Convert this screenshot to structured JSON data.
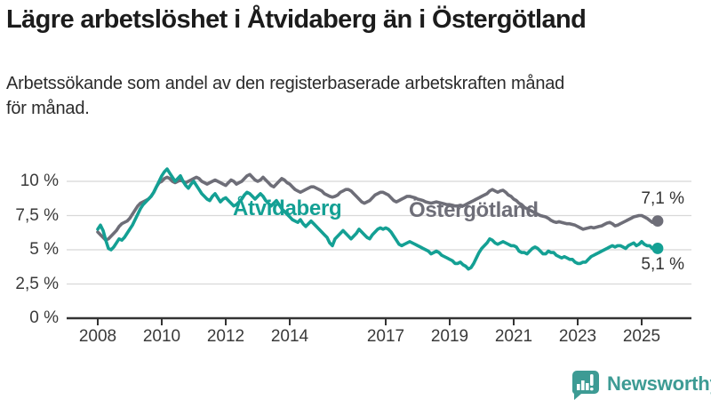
{
  "header": {
    "title": "Lägre arbetslöshet i Åtvidaberg än i Östergötland",
    "subtitle_line1": "Arbetssökande som andel av den registerbaserade arbetskraften månad",
    "subtitle_line2": "för månad."
  },
  "chart_data": {
    "type": "line",
    "title": "Lägre arbetslöshet i Åtvidaberg än i Östergötland",
    "xlabel": "",
    "ylabel": "Arbetssökande som andel av den registerbaserade arbetskraften",
    "x_unit": "month",
    "x_start_year": 2008,
    "x_end_label_year": 2025.5,
    "ylim": [
      0,
      11.2
    ],
    "grid": "horizontal",
    "y_ticks": [
      {
        "label": "10 %",
        "value": 10
      },
      {
        "label": "7,5 %",
        "value": 7.5
      },
      {
        "label": "5 %",
        "value": 5
      },
      {
        "label": "2,5 %",
        "value": 2.5
      },
      {
        "label": "0 %",
        "value": 0
      }
    ],
    "x_ticks": [
      {
        "label": "2008",
        "year": 2008
      },
      {
        "label": "2010",
        "year": 2010
      },
      {
        "label": "2012",
        "year": 2012
      },
      {
        "label": "2014",
        "year": 2014
      },
      {
        "label": "2017",
        "year": 2017
      },
      {
        "label": "2019",
        "year": 2019
      },
      {
        "label": "2021",
        "year": 2021
      },
      {
        "label": "2023",
        "year": 2023
      },
      {
        "label": "2025",
        "year": 2025
      }
    ],
    "series": [
      {
        "name": "Östergötland",
        "color": "#6e6e78",
        "end_label": "7,1 %",
        "end_value": 7.1,
        "values": [
          6.3,
          6.1,
          5.9,
          5.7,
          5.8,
          6.0,
          6.2,
          6.4,
          6.7,
          6.9,
          7.0,
          7.1,
          7.3,
          7.6,
          7.9,
          8.2,
          8.4,
          8.5,
          8.6,
          8.7,
          8.9,
          9.2,
          9.6,
          9.9,
          10.0,
          10.2,
          10.3,
          10.2,
          10.0,
          9.9,
          10.0,
          10.1,
          10.0,
          9.9,
          10.0,
          10.1,
          10.2,
          10.3,
          10.2,
          10.0,
          9.9,
          9.8,
          9.9,
          10.0,
          10.1,
          10.0,
          9.9,
          9.8,
          9.7,
          9.9,
          10.1,
          10.0,
          9.8,
          9.9,
          10.0,
          10.2,
          10.4,
          10.5,
          10.3,
          10.1,
          10.0,
          10.1,
          10.3,
          10.1,
          9.9,
          9.7,
          9.6,
          9.8,
          10.0,
          10.2,
          10.1,
          9.9,
          9.8,
          9.6,
          9.4,
          9.3,
          9.2,
          9.3,
          9.4,
          9.5,
          9.6,
          9.6,
          9.5,
          9.4,
          9.3,
          9.1,
          9.0,
          8.9,
          8.85,
          8.9,
          9.0,
          9.2,
          9.3,
          9.4,
          9.4,
          9.3,
          9.1,
          8.9,
          8.7,
          8.5,
          8.4,
          8.5,
          8.6,
          8.8,
          9.0,
          9.1,
          9.2,
          9.2,
          9.1,
          9.0,
          8.8,
          8.6,
          8.5,
          8.6,
          8.7,
          8.8,
          8.9,
          8.9,
          8.85,
          8.8,
          8.7,
          8.65,
          8.6,
          8.5,
          8.45,
          8.4,
          8.45,
          8.5,
          8.45,
          8.4,
          8.35,
          8.3,
          8.3,
          8.25,
          8.2,
          8.2,
          8.25,
          8.2,
          8.3,
          8.4,
          8.5,
          8.6,
          8.7,
          8.8,
          8.9,
          9.0,
          9.1,
          9.3,
          9.4,
          9.3,
          9.2,
          9.3,
          9.35,
          9.2,
          9.0,
          8.9,
          8.7,
          8.6,
          8.4,
          8.3,
          8.1,
          8.0,
          7.9,
          7.8,
          7.7,
          7.6,
          7.5,
          7.45,
          7.4,
          7.3,
          7.15,
          7.05,
          7.0,
          7.05,
          7.0,
          6.95,
          6.9,
          6.9,
          6.85,
          6.8,
          6.7,
          6.6,
          6.5,
          6.55,
          6.6,
          6.65,
          6.6,
          6.65,
          6.7,
          6.75,
          6.85,
          6.95,
          7.0,
          6.9,
          6.75,
          6.8,
          6.9,
          7.0,
          7.1,
          7.2,
          7.3,
          7.4,
          7.45,
          7.5,
          7.5,
          7.4,
          7.3,
          7.15,
          7.0,
          7.05,
          7.1
        ]
      },
      {
        "name": "Åtvidaberg",
        "color": "#14a094",
        "end_label": "5,1 %",
        "end_value": 5.1,
        "values": [
          6.5,
          6.8,
          6.4,
          5.7,
          5.1,
          5.0,
          5.2,
          5.5,
          5.8,
          5.7,
          5.9,
          6.2,
          6.5,
          6.8,
          7.2,
          7.6,
          8.0,
          8.3,
          8.5,
          8.7,
          8.9,
          9.2,
          9.6,
          10.0,
          10.4,
          10.7,
          10.9,
          10.6,
          10.3,
          10.0,
          10.2,
          10.4,
          10.0,
          9.7,
          9.5,
          9.8,
          10.0,
          9.7,
          9.4,
          9.1,
          8.9,
          8.7,
          8.6,
          8.9,
          9.1,
          8.8,
          8.5,
          8.7,
          8.8,
          8.6,
          8.4,
          8.2,
          8.3,
          8.5,
          8.7,
          9.0,
          9.2,
          9.1,
          8.9,
          8.7,
          8.9,
          9.1,
          8.9,
          8.6,
          8.4,
          8.2,
          8.4,
          8.6,
          8.3,
          8.0,
          7.8,
          7.6,
          7.4,
          7.2,
          7.1,
          7.0,
          7.2,
          6.9,
          6.7,
          6.9,
          7.1,
          6.9,
          6.7,
          6.5,
          6.3,
          6.1,
          5.9,
          5.5,
          5.3,
          5.8,
          6.0,
          6.2,
          6.4,
          6.2,
          6.0,
          5.8,
          6.0,
          6.2,
          6.5,
          6.3,
          6.1,
          5.9,
          5.8,
          6.1,
          6.3,
          6.5,
          6.6,
          6.5,
          6.6,
          6.5,
          6.3,
          6.0,
          5.7,
          5.4,
          5.3,
          5.4,
          5.5,
          5.6,
          5.5,
          5.4,
          5.3,
          5.2,
          5.1,
          5.0,
          4.9,
          4.7,
          4.8,
          4.9,
          4.8,
          4.6,
          4.5,
          4.4,
          4.3,
          4.2,
          4.0,
          4.0,
          4.1,
          3.9,
          3.8,
          3.6,
          3.7,
          4.0,
          4.4,
          4.8,
          5.1,
          5.3,
          5.5,
          5.8,
          5.7,
          5.5,
          5.4,
          5.5,
          5.6,
          5.5,
          5.4,
          5.3,
          5.3,
          5.2,
          4.9,
          4.8,
          4.8,
          4.7,
          4.9,
          5.1,
          5.2,
          5.1,
          4.9,
          4.7,
          4.7,
          4.9,
          4.8,
          4.8,
          4.6,
          4.5,
          4.4,
          4.5,
          4.4,
          4.3,
          4.3,
          4.1,
          4.0,
          4.0,
          4.1,
          4.1,
          4.3,
          4.5,
          4.6,
          4.7,
          4.8,
          4.9,
          5.0,
          5.1,
          5.2,
          5.3,
          5.2,
          5.3,
          5.3,
          5.2,
          5.1,
          5.3,
          5.4,
          5.5,
          5.3,
          5.4,
          5.6,
          5.4,
          5.3,
          5.3,
          5.1,
          5.2,
          5.1
        ]
      }
    ]
  },
  "footer": {
    "brand": "Newsworthy",
    "brand_color": "#3d9b94"
  }
}
